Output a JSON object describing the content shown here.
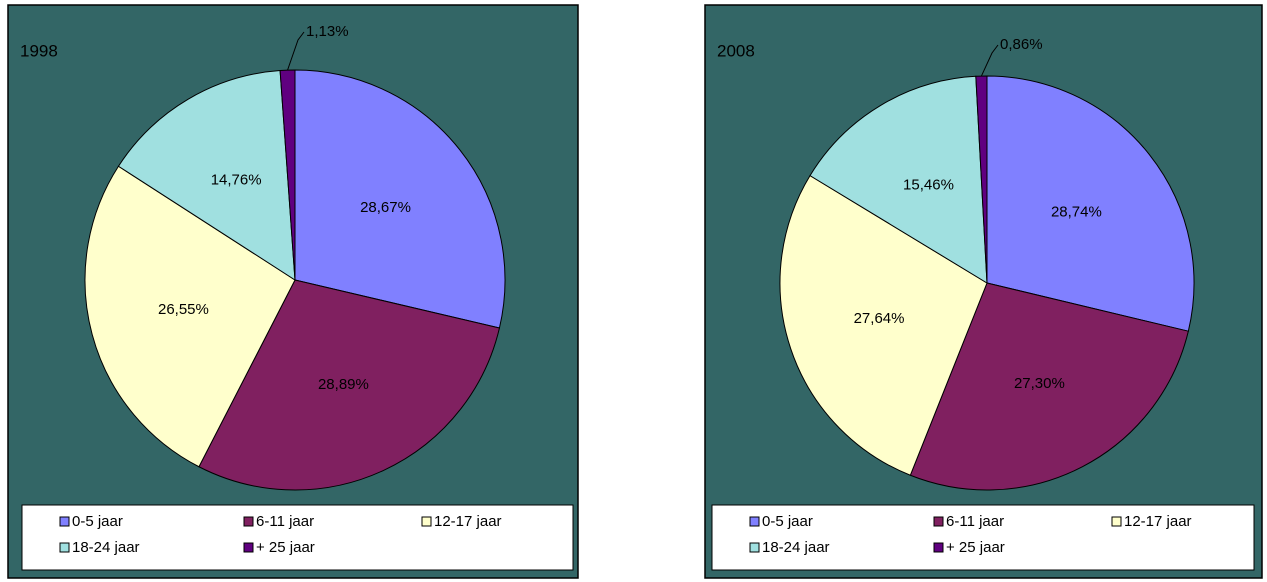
{
  "chart_data": [
    {
      "type": "pie",
      "title": "1998",
      "categories": [
        "0-5 jaar",
        "6-11 jaar",
        "12-17 jaar",
        "18-24 jaar",
        "+ 25 jaar"
      ],
      "values": [
        28.67,
        28.89,
        26.55,
        14.76,
        1.13
      ],
      "value_labels": [
        "28,67%",
        "28,89%",
        "26,55%",
        "14,76%",
        "1,13%"
      ],
      "colors": [
        "#8080ff",
        "#802060",
        "#ffffcc",
        "#a0e0e0",
        "#600080"
      ]
    },
    {
      "type": "pie",
      "title": "2008",
      "categories": [
        "0-5 jaar",
        "6-11 jaar",
        "12-17 jaar",
        "18-24 jaar",
        "+ 25 jaar"
      ],
      "values": [
        28.74,
        27.3,
        27.64,
        15.46,
        0.86
      ],
      "value_labels": [
        "28,74%",
        "27,30%",
        "27,64%",
        "15,46%",
        "0,86%"
      ],
      "colors": [
        "#8080ff",
        "#802060",
        "#ffffcc",
        "#a0e0e0",
        "#600080"
      ]
    }
  ]
}
